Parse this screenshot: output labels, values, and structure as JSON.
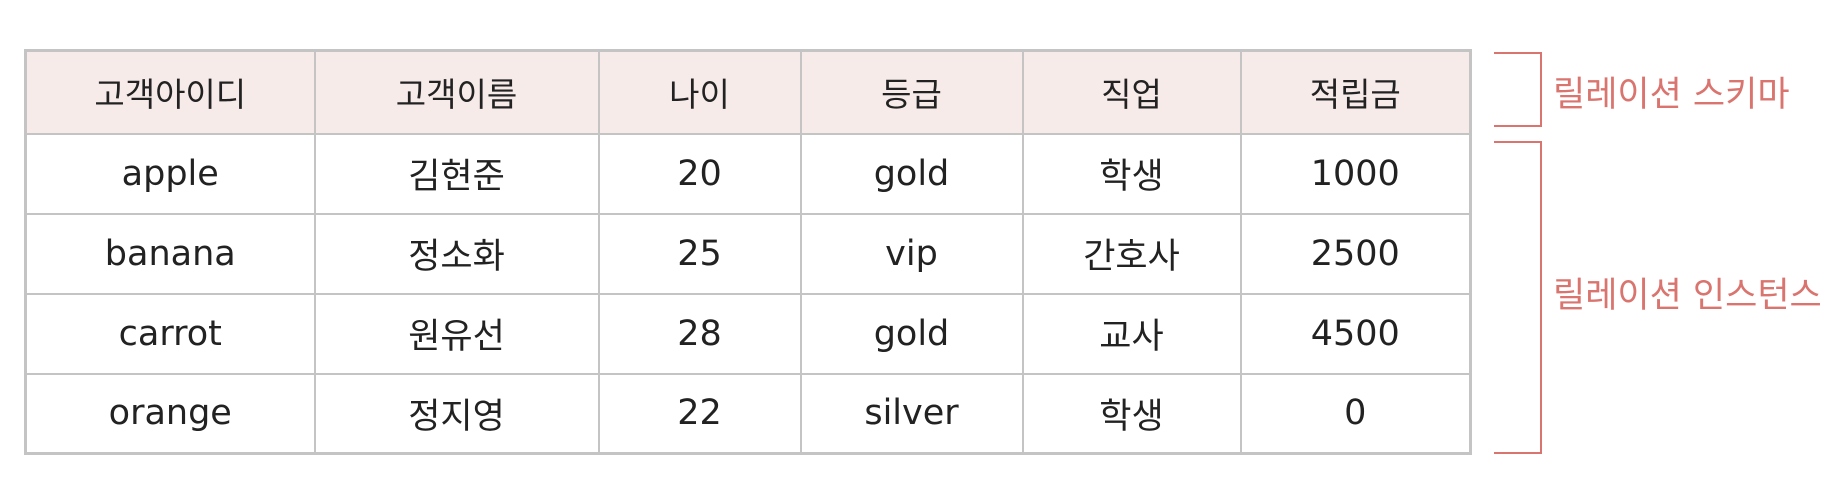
{
  "table": {
    "headers": [
      "고객아이디",
      "고객이름",
      "나이",
      "등급",
      "직업",
      "적립금"
    ],
    "rows": [
      [
        "apple",
        "김현준",
        "20",
        "gold",
        "학생",
        "1000"
      ],
      [
        "banana",
        "정소화",
        "25",
        "vip",
        "간호사",
        "2500"
      ],
      [
        "carrot",
        "원유선",
        "28",
        "gold",
        "교사",
        "4500"
      ],
      [
        "orange",
        "정지영",
        "22",
        "silver",
        "학생",
        "0"
      ]
    ]
  },
  "annotations": {
    "schema_label": "릴레이션 스키마",
    "instance_label": "릴레이션 인스턴스"
  },
  "colors": {
    "header_background": "#f7ebea",
    "border": "#c4c4c4",
    "annotation": "#d9746f"
  }
}
